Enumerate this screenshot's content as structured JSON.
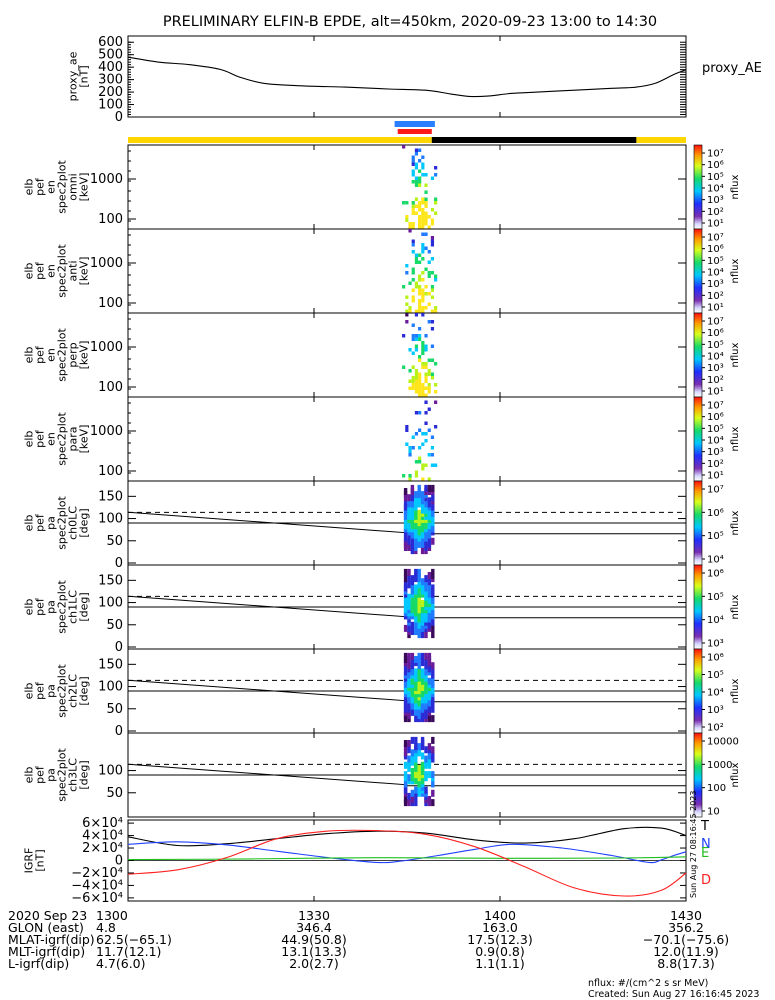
{
  "title": "PRELIMINARY ELFIN-B EPDE, alt=450km, 2020-09-23 13:00 to 14:30",
  "chart_data": {
    "type": "line",
    "x_ticks": [
      "1300",
      "1330",
      "1400",
      "1430"
    ],
    "x_tick_minutes": [
      0,
      30,
      60,
      90
    ],
    "x_range_minutes": [
      0,
      90
    ],
    "proxy_ae": {
      "ylabel": [
        "proxy_ae",
        "[nT]"
      ],
      "legend": "proxy_AE",
      "yticks": [
        "600",
        "500",
        "400",
        "300",
        "200",
        "100",
        "0"
      ],
      "ytick_values": [
        600,
        500,
        400,
        300,
        200,
        100,
        0
      ],
      "ylim": [
        0,
        650
      ],
      "series": {
        "name": "proxy_AE",
        "t": [
          0,
          5,
          10,
          15,
          18,
          22,
          28,
          35,
          42,
          48,
          52,
          55,
          58,
          62,
          66,
          72,
          78,
          82,
          85,
          88,
          90
        ],
        "values": [
          480,
          440,
          420,
          380,
          320,
          270,
          250,
          240,
          225,
          215,
          185,
          165,
          168,
          190,
          200,
          215,
          230,
          240,
          270,
          340,
          380
        ]
      }
    },
    "status_bar": {
      "colors": {
        "yellow": "#ffd700",
        "black": "#000000",
        "blue": "#2a7fff",
        "red": "#ff1a1a"
      },
      "segments_minutes": [
        {
          "from": 0,
          "to": 49,
          "color": "yellow"
        },
        {
          "from": 49,
          "to": 82,
          "color": "black"
        },
        {
          "from": 82,
          "to": 90,
          "color": "yellow"
        }
      ],
      "blue_bar_minutes": [
        43,
        49.5
      ],
      "red_bar_minutes": [
        43.5,
        49
      ]
    },
    "spectrogram_panels": [
      {
        "ylabel": [
          "elb",
          "pef",
          "en",
          "spec2plot",
          "omni",
          "[keV]"
        ],
        "yticks": [
          "1000",
          "100"
        ],
        "colorbar_ticks": [
          "10⁷",
          "10⁶",
          "10⁵",
          "10⁴",
          "10³",
          "10²",
          "10¹"
        ],
        "colorbar_label": "nflux",
        "peak": "10⁷"
      },
      {
        "ylabel": [
          "elb",
          "pef",
          "en",
          "spec2plot",
          "anti",
          "[keV]"
        ],
        "yticks": [
          "1000",
          "100"
        ],
        "colorbar_ticks": [
          "10⁷",
          "10⁶",
          "10⁵",
          "10⁴",
          "10³",
          "10²",
          "10¹"
        ],
        "colorbar_label": "nflux",
        "peak": "10⁷"
      },
      {
        "ylabel": [
          "elb",
          "pef",
          "en",
          "spec2plot",
          "perp",
          "[keV]"
        ],
        "yticks": [
          "1000",
          "100"
        ],
        "colorbar_ticks": [
          "10⁷",
          "10⁶",
          "10⁵",
          "10⁴",
          "10³",
          "10²",
          "10¹"
        ],
        "colorbar_label": "nflux",
        "peak": "10⁷"
      },
      {
        "ylabel": [
          "elb",
          "pef",
          "en",
          "spec2plot",
          "para",
          "[keV]"
        ],
        "yticks": [
          "1000",
          "100"
        ],
        "colorbar_ticks": [
          "10⁷",
          "10⁶",
          "10⁵",
          "10⁴",
          "10³",
          "10²",
          "10¹"
        ],
        "colorbar_label": "nflux",
        "peak": "10⁷"
      }
    ],
    "pitch_angle_panels": [
      {
        "ylabel": [
          "elb",
          "pef",
          "pa",
          "spec2plot",
          "ch0LC",
          "[deg]"
        ],
        "yticks": [
          "150",
          "100",
          "50",
          "0"
        ],
        "colorbar_ticks": [
          "10⁷",
          "10⁶",
          "10⁵",
          "10⁴"
        ],
        "colorbar_label": "nflux"
      },
      {
        "ylabel": [
          "elb",
          "pef",
          "pa",
          "spec2plot",
          "ch1LC",
          "[deg]"
        ],
        "yticks": [
          "150",
          "100",
          "50",
          "0"
        ],
        "colorbar_ticks": [
          "10⁶",
          "10⁵",
          "10⁴",
          "10³"
        ],
        "colorbar_label": "nflux"
      },
      {
        "ylabel": [
          "elb",
          "pef",
          "pa",
          "spec2plot",
          "ch2LC",
          "[deg]"
        ],
        "yticks": [
          "150",
          "100",
          "50",
          "0"
        ],
        "colorbar_ticks": [
          "10⁶",
          "10⁵",
          "10⁴",
          "10³",
          "10²"
        ],
        "colorbar_label": "nflux"
      },
      {
        "ylabel": [
          "elb",
          "pef",
          "pa",
          "spec2plot",
          "ch3LC",
          "[deg]"
        ],
        "yticks": [
          "100",
          "50"
        ],
        "colorbar_ticks": [
          "10000",
          "1000",
          "100",
          "10"
        ],
        "colorbar_label": "nflux"
      }
    ],
    "igrf": {
      "ylabel": [
        "IGRF",
        "[nT]"
      ],
      "yticks": [
        "6×10⁴",
        "4×10⁴",
        "2×10⁴",
        "0",
        "−2×10⁴",
        "−4×10⁴",
        "−6×10⁴"
      ],
      "ylim": [
        -65000,
        65000
      ],
      "stamp": "Sun Aug 27 08:16:45 2023",
      "series": [
        {
          "name": "T",
          "color": "#000000",
          "t": [
            0,
            8,
            16,
            24,
            32,
            40,
            48,
            56,
            64,
            72,
            80,
            86,
            90
          ],
          "values": [
            38000,
            24000,
            27000,
            35000,
            43000,
            47000,
            44000,
            33000,
            28000,
            35000,
            51000,
            52000,
            40000
          ]
        },
        {
          "name": "N",
          "color": "#1f3fff",
          "t": [
            0,
            8,
            16,
            24,
            32,
            40,
            44,
            50,
            56,
            62,
            70,
            78,
            84,
            86,
            88,
            90
          ],
          "values": [
            26000,
            30000,
            25000,
            15000,
            5000,
            -3000,
            -1000,
            8000,
            18000,
            26000,
            20000,
            8000,
            -3000,
            1000,
            8000,
            14000
          ]
        },
        {
          "name": "E",
          "color": "#1fbf1f",
          "t": [
            0,
            20,
            40,
            60,
            80,
            90
          ],
          "values": [
            1500,
            2500,
            4500,
            3500,
            4000,
            6000
          ]
        },
        {
          "name": "D",
          "color": "#ff2020",
          "t": [
            0,
            8,
            16,
            24,
            32,
            40,
            48,
            56,
            64,
            72,
            80,
            86,
            90
          ],
          "values": [
            -22000,
            -15000,
            5000,
            35000,
            47000,
            48000,
            42000,
            22000,
            -10000,
            -44000,
            -57000,
            -48000,
            -20000
          ]
        }
      ]
    }
  },
  "footer": {
    "rows": [
      {
        "label": "2020 Sep 23",
        "values": [
          "1300",
          "1330",
          "1400",
          "1430"
        ]
      },
      {
        "label": "GLON (east)",
        "values": [
          "4.8",
          "346.4",
          "163.0",
          "356.2"
        ]
      },
      {
        "label": "MLAT-igrf(dip)",
        "values": [
          "62.5(−65.1)",
          "44.9(50.8)",
          "17.5(12.3)",
          "−70.1(−75.6)"
        ]
      },
      {
        "label": "MLT-igrf(dip)",
        "values": [
          "11.7(12.1)",
          "13.1(13.3)",
          "0.9(0.8)",
          "12.0(11.9)"
        ]
      },
      {
        "label": "L-igrf(dip)",
        "values": [
          "4.7(6.0)",
          "2.0(2.7)",
          "1.1(1.1)",
          "8.8(17.3)"
        ]
      }
    ],
    "units": "nflux: #/(cm^2 s sr MeV)",
    "created": "Created: Sun Aug 27 16:16:45 2023"
  }
}
